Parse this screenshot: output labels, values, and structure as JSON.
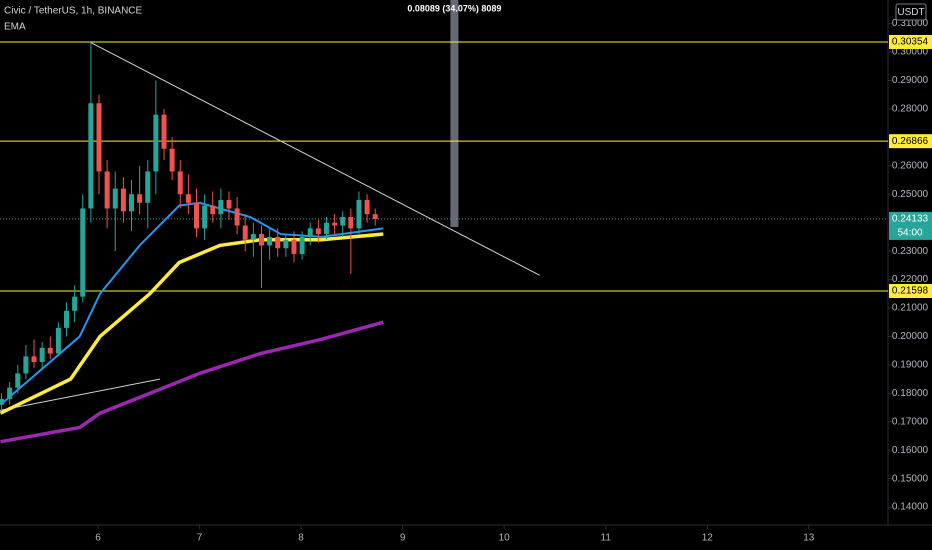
{
  "chart_data": {
    "type": "candlestick",
    "title": "Civic / TetherUS, 1h, BINANCE",
    "indicator": "EMA",
    "currency": "USDT",
    "x": [
      5.05,
      5.13,
      5.21,
      5.29,
      5.37,
      5.45,
      5.53,
      5.61,
      5.69,
      5.77,
      5.85,
      5.93,
      6.01,
      6.09,
      6.17,
      6.25,
      6.33,
      6.41,
      6.49,
      6.57,
      6.65,
      6.73,
      6.81,
      6.89,
      6.97,
      7.05,
      7.13,
      7.21,
      7.29,
      7.37,
      7.45,
      7.53,
      7.61,
      7.69,
      7.77,
      7.85,
      7.93,
      8.01,
      8.09,
      8.17,
      8.25,
      8.33,
      8.41,
      8.49,
      8.57,
      8.65,
      8.73
    ],
    "open": [
      0.176,
      0.178,
      0.182,
      0.187,
      0.193,
      0.191,
      0.196,
      0.194,
      0.203,
      0.209,
      0.214,
      0.245,
      0.282,
      0.258,
      0.245,
      0.252,
      0.244,
      0.25,
      0.247,
      0.258,
      0.278,
      0.266,
      0.258,
      0.25,
      0.247,
      0.238,
      0.246,
      0.243,
      0.248,
      0.245,
      0.239,
      0.234,
      0.236,
      0.232,
      0.235,
      0.231,
      0.234,
      0.229,
      0.235,
      0.238,
      0.236,
      0.24,
      0.239,
      0.242,
      0.238,
      0.248,
      0.243
    ],
    "high": [
      0.18,
      0.184,
      0.19,
      0.197,
      0.199,
      0.198,
      0.2,
      0.205,
      0.212,
      0.218,
      0.25,
      0.3035,
      0.285,
      0.262,
      0.258,
      0.256,
      0.255,
      0.26,
      0.262,
      0.29,
      0.28,
      0.27,
      0.262,
      0.257,
      0.252,
      0.25,
      0.251,
      0.252,
      0.251,
      0.249,
      0.243,
      0.24,
      0.239,
      0.238,
      0.238,
      0.236,
      0.237,
      0.237,
      0.24,
      0.241,
      0.242,
      0.243,
      0.244,
      0.245,
      0.251,
      0.25,
      0.245
    ],
    "low": [
      0.174,
      0.176,
      0.18,
      0.185,
      0.189,
      0.188,
      0.192,
      0.193,
      0.2,
      0.205,
      0.212,
      0.24,
      0.25,
      0.238,
      0.23,
      0.24,
      0.237,
      0.243,
      0.238,
      0.25,
      0.262,
      0.255,
      0.245,
      0.243,
      0.235,
      0.234,
      0.24,
      0.238,
      0.241,
      0.236,
      0.23,
      0.228,
      0.217,
      0.227,
      0.228,
      0.228,
      0.226,
      0.227,
      0.232,
      0.233,
      0.234,
      0.236,
      0.235,
      0.222,
      0.236,
      0.24,
      0.239
    ],
    "close": [
      0.178,
      0.182,
      0.187,
      0.193,
      0.191,
      0.196,
      0.194,
      0.203,
      0.209,
      0.214,
      0.245,
      0.282,
      0.258,
      0.245,
      0.252,
      0.244,
      0.25,
      0.247,
      0.258,
      0.278,
      0.266,
      0.258,
      0.25,
      0.247,
      0.238,
      0.246,
      0.243,
      0.248,
      0.245,
      0.239,
      0.234,
      0.236,
      0.232,
      0.235,
      0.231,
      0.234,
      0.229,
      0.235,
      0.238,
      0.236,
      0.24,
      0.239,
      0.242,
      0.238,
      0.248,
      0.243,
      0.2413
    ],
    "up_color": "#26a69a",
    "down_color": "#ef5350",
    "ema_series": [
      {
        "color": "#2196f3",
        "x": [
          5.04,
          5.82,
          6.02,
          6.41,
          6.8,
          7.0,
          7.5,
          7.8,
          8.2,
          8.81
        ],
        "values": [
          0.176,
          0.2,
          0.215,
          0.232,
          0.246,
          0.247,
          0.242,
          0.236,
          0.235,
          0.238
        ]
      },
      {
        "color": "#ffeb3b",
        "x": [
          5.04,
          5.73,
          6.02,
          6.51,
          6.8,
          7.2,
          7.6,
          8.2,
          8.81
        ],
        "values": [
          0.173,
          0.185,
          0.2,
          0.215,
          0.226,
          0.232,
          0.234,
          0.234,
          0.236
        ]
      },
      {
        "color": "#9c27b0",
        "x": [
          5.04,
          5.82,
          6.02,
          6.51,
          7.0,
          7.6,
          8.2,
          8.81
        ],
        "values": [
          0.163,
          0.168,
          0.173,
          0.18,
          0.187,
          0.194,
          0.199,
          0.205
        ]
      }
    ],
    "trendlines": [
      {
        "color": "#d1d4dc",
        "x": [
          5.92,
          10.35
        ],
        "y": [
          0.3035,
          0.2215
        ]
      },
      {
        "color": "#d1d4dc",
        "x": [
          5.035,
          6.61
        ],
        "y": [
          0.174,
          0.185
        ]
      }
    ],
    "levels": [
      0.30354,
      0.26866,
      0.21598
    ],
    "level_color": "#ffeb3b",
    "last_price": 0.24133,
    "countdown": "54:00",
    "measure": {
      "x": 9.51,
      "from": 0.2385,
      "label": "0.08089 (34.07%) 8089"
    },
    "xlim": [
      5.035,
      13.78
    ],
    "ylim": [
      0.1337,
      0.3183
    ],
    "xticks": [
      6,
      7,
      8,
      9,
      10,
      11,
      12,
      13
    ],
    "yticks": [
      {
        "value": 0.14,
        "label": "0.14000"
      },
      {
        "value": 0.15,
        "label": "0.15000"
      },
      {
        "value": 0.16,
        "label": "0.16000"
      },
      {
        "value": 0.17,
        "label": "0.17000"
      },
      {
        "value": 0.18,
        "label": "0.18000"
      },
      {
        "value": 0.19,
        "label": "0.19000"
      },
      {
        "value": 0.2,
        "label": "0.20000"
      },
      {
        "value": 0.21,
        "label": "0.21000"
      },
      {
        "value": 0.22,
        "label": "0.22000"
      },
      {
        "value": 0.23,
        "label": "0.23000"
      },
      {
        "value": 0.25,
        "label": "0.25000"
      },
      {
        "value": 0.26,
        "label": "0.26000"
      },
      {
        "value": 0.28,
        "label": "0.28000"
      },
      {
        "value": 0.29,
        "label": "0.29000"
      },
      {
        "value": 0.3,
        "label": "0.30000"
      },
      {
        "value": 0.31,
        "label": "0.31000"
      }
    ]
  }
}
